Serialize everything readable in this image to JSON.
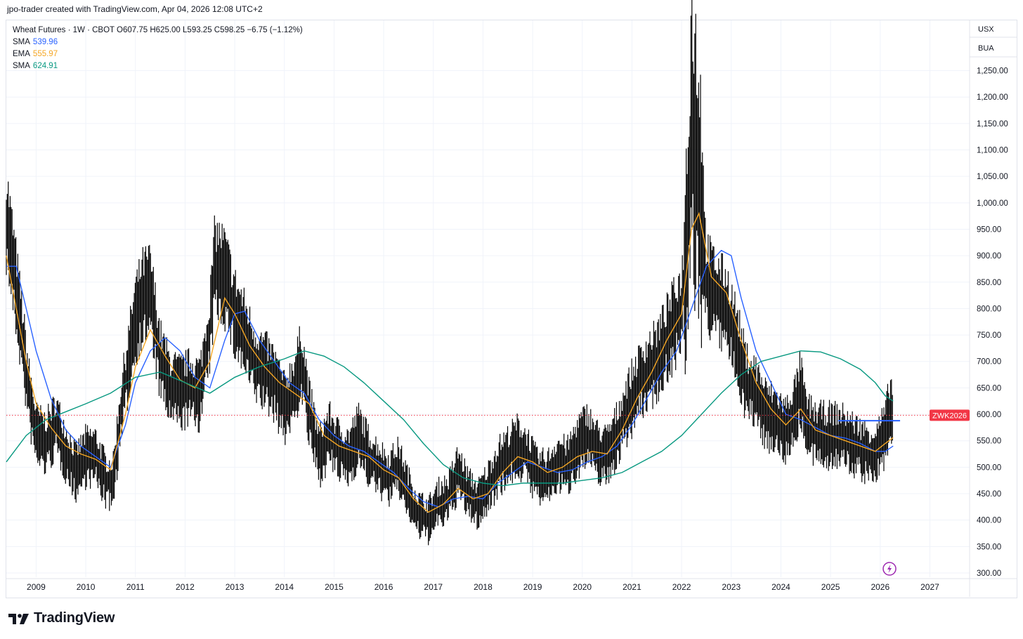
{
  "attribution": "jpo-trader created with TradingView.com, Apr 04, 2026 12:08 UTC+2",
  "legend": {
    "header": "Wheat Futures · 1W · CBOT  O607.75  H625.00  L593.25  C598.25  −6.75 (−1.12%)",
    "indicators": [
      {
        "name": "SMA",
        "value": "539.96",
        "color": "#2962ff"
      },
      {
        "name": "EMA",
        "value": "555.97",
        "color": "#f5a623"
      },
      {
        "name": "SMA",
        "value": "624.91",
        "color": "#089981"
      }
    ]
  },
  "units": [
    "USX",
    "BUA"
  ],
  "price_label": {
    "text": "ZWK2026",
    "value": 598.25,
    "color": "#f23645"
  },
  "brand": {
    "name": "TradingView",
    "logo_icon": "tradingview-logo-icon"
  },
  "chart_data": {
    "type": "line",
    "x_axis": {
      "ticks": [
        "2009",
        "2010",
        "2011",
        "2012",
        "2013",
        "2014",
        "2015",
        "2016",
        "2017",
        "2018",
        "2019",
        "2020",
        "2021",
        "2022",
        "2023",
        "2024",
        "2025",
        "2026",
        "2027"
      ],
      "range": [
        2008.4,
        2027.8
      ]
    },
    "y_axis": {
      "ticks": [
        "1,250.00",
        "1,200.00",
        "1,150.00",
        "1,100.00",
        "1,050.00",
        "1,000.00",
        "950.00",
        "900.00",
        "850.00",
        "800.00",
        "750.00",
        "700.00",
        "650.00",
        "600.00",
        "550.00",
        "500.00",
        "450.00",
        "400.00",
        "350.00",
        "300.00"
      ],
      "range": [
        292,
        1345
      ],
      "position": "right"
    },
    "grid": true,
    "price_envelope": [
      [
        2008.4,
        975
      ],
      [
        2008.55,
        870
      ],
      [
        2008.7,
        760
      ],
      [
        2008.85,
        640
      ],
      [
        2009.0,
        560
      ],
      [
        2009.2,
        545
      ],
      [
        2009.4,
        580
      ],
      [
        2009.6,
        530
      ],
      [
        2009.8,
        490
      ],
      [
        2010.0,
        520
      ],
      [
        2010.2,
        520
      ],
      [
        2010.4,
        475
      ],
      [
        2010.55,
        470
      ],
      [
        2010.7,
        600
      ],
      [
        2010.85,
        690
      ],
      [
        2011.0,
        780
      ],
      [
        2011.15,
        820
      ],
      [
        2011.3,
        830
      ],
      [
        2011.5,
        700
      ],
      [
        2011.7,
        650
      ],
      [
        2011.9,
        640
      ],
      [
        2012.1,
        650
      ],
      [
        2012.3,
        640
      ],
      [
        2012.5,
        760
      ],
      [
        2012.6,
        880
      ],
      [
        2012.8,
        860
      ],
      [
        2013.0,
        790
      ],
      [
        2013.2,
        750
      ],
      [
        2013.4,
        700
      ],
      [
        2013.6,
        680
      ],
      [
        2013.8,
        660
      ],
      [
        2014.0,
        610
      ],
      [
        2014.2,
        650
      ],
      [
        2014.35,
        700
      ],
      [
        2014.5,
        600
      ],
      [
        2014.7,
        520
      ],
      [
        2014.9,
        560
      ],
      [
        2015.1,
        530
      ],
      [
        2015.3,
        520
      ],
      [
        2015.5,
        560
      ],
      [
        2015.7,
        520
      ],
      [
        2015.9,
        500
      ],
      [
        2016.1,
        480
      ],
      [
        2016.3,
        500
      ],
      [
        2016.5,
        450
      ],
      [
        2016.7,
        410
      ],
      [
        2016.9,
        400
      ],
      [
        2017.1,
        430
      ],
      [
        2017.3,
        440
      ],
      [
        2017.5,
        490
      ],
      [
        2017.7,
        450
      ],
      [
        2017.9,
        430
      ],
      [
        2018.1,
        460
      ],
      [
        2018.3,
        500
      ],
      [
        2018.5,
        520
      ],
      [
        2018.7,
        540
      ],
      [
        2018.9,
        520
      ],
      [
        2019.1,
        480
      ],
      [
        2019.3,
        480
      ],
      [
        2019.5,
        510
      ],
      [
        2019.7,
        500
      ],
      [
        2019.9,
        540
      ],
      [
        2020.1,
        560
      ],
      [
        2020.3,
        530
      ],
      [
        2020.5,
        520
      ],
      [
        2020.7,
        560
      ],
      [
        2020.9,
        610
      ],
      [
        2021.1,
        650
      ],
      [
        2021.3,
        680
      ],
      [
        2021.5,
        700
      ],
      [
        2021.7,
        740
      ],
      [
        2021.9,
        780
      ],
      [
        2022.0,
        800
      ],
      [
        2022.1,
        900
      ],
      [
        2022.2,
        1150
      ],
      [
        2022.35,
        1050
      ],
      [
        2022.5,
        850
      ],
      [
        2022.7,
        820
      ],
      [
        2022.9,
        800
      ],
      [
        2023.1,
        740
      ],
      [
        2023.3,
        660
      ],
      [
        2023.5,
        640
      ],
      [
        2023.7,
        600
      ],
      [
        2023.9,
        590
      ],
      [
        2024.1,
        570
      ],
      [
        2024.3,
        610
      ],
      [
        2024.4,
        650
      ],
      [
        2024.5,
        580
      ],
      [
        2024.7,
        560
      ],
      [
        2024.9,
        560
      ],
      [
        2025.1,
        560
      ],
      [
        2025.3,
        555
      ],
      [
        2025.5,
        540
      ],
      [
        2025.7,
        530
      ],
      [
        2025.9,
        525
      ],
      [
        2026.1,
        560
      ],
      [
        2026.2,
        615
      ],
      [
        2026.26,
        598
      ]
    ],
    "series": [
      {
        "values": [
          [
            2008.4,
            880
          ],
          [
            2008.6,
            880
          ],
          [
            2008.8,
            800
          ],
          [
            2009.0,
            720
          ],
          [
            2009.3,
            630
          ],
          [
            2009.6,
            570
          ],
          [
            2009.9,
            540
          ],
          [
            2010.2,
            520
          ],
          [
            2010.5,
            500
          ],
          [
            2010.8,
            580
          ],
          [
            2011.0,
            660
          ],
          [
            2011.3,
            720
          ],
          [
            2011.6,
            745
          ],
          [
            2011.9,
            720
          ],
          [
            2012.2,
            670
          ],
          [
            2012.5,
            650
          ],
          [
            2012.8,
            740
          ],
          [
            2013.0,
            790
          ],
          [
            2013.2,
            795
          ],
          [
            2013.5,
            740
          ],
          [
            2013.8,
            700
          ],
          [
            2014.1,
            660
          ],
          [
            2014.4,
            640
          ],
          [
            2014.7,
            590
          ],
          [
            2015.0,
            560
          ],
          [
            2015.3,
            540
          ],
          [
            2015.6,
            530
          ],
          [
            2015.9,
            510
          ],
          [
            2016.2,
            490
          ],
          [
            2016.5,
            460
          ],
          [
            2016.8,
            435
          ],
          [
            2017.1,
            425
          ],
          [
            2017.4,
            440
          ],
          [
            2017.7,
            445
          ],
          [
            2018.0,
            440
          ],
          [
            2018.3,
            470
          ],
          [
            2018.6,
            490
          ],
          [
            2018.9,
            510
          ],
          [
            2019.2,
            500
          ],
          [
            2019.5,
            490
          ],
          [
            2019.8,
            495
          ],
          [
            2020.1,
            510
          ],
          [
            2020.4,
            520
          ],
          [
            2020.7,
            540
          ],
          [
            2021.0,
            580
          ],
          [
            2021.3,
            630
          ],
          [
            2021.6,
            680
          ],
          [
            2021.9,
            720
          ],
          [
            2022.2,
            800
          ],
          [
            2022.5,
            880
          ],
          [
            2022.8,
            910
          ],
          [
            2023.0,
            900
          ],
          [
            2023.2,
            820
          ],
          [
            2023.5,
            720
          ],
          [
            2023.8,
            660
          ],
          [
            2024.1,
            600
          ],
          [
            2024.4,
            590
          ],
          [
            2024.7,
            575
          ],
          [
            2025.0,
            560
          ],
          [
            2025.3,
            555
          ],
          [
            2025.6,
            545
          ],
          [
            2025.9,
            530
          ],
          [
            2026.1,
            530
          ],
          [
            2026.26,
            540
          ]
        ]
      },
      {
        "values": [
          [
            2008.4,
            900
          ],
          [
            2008.6,
            800
          ],
          [
            2008.8,
            700
          ],
          [
            2009.0,
            620
          ],
          [
            2009.3,
            575
          ],
          [
            2009.6,
            540
          ],
          [
            2009.9,
            525
          ],
          [
            2010.2,
            515
          ],
          [
            2010.5,
            495
          ],
          [
            2010.8,
            600
          ],
          [
            2011.0,
            690
          ],
          [
            2011.3,
            760
          ],
          [
            2011.6,
            710
          ],
          [
            2011.9,
            665
          ],
          [
            2012.2,
            650
          ],
          [
            2012.5,
            700
          ],
          [
            2012.8,
            820
          ],
          [
            2013.0,
            790
          ],
          [
            2013.3,
            730
          ],
          [
            2013.6,
            690
          ],
          [
            2013.9,
            660
          ],
          [
            2014.2,
            640
          ],
          [
            2014.5,
            620
          ],
          [
            2014.8,
            560
          ],
          [
            2015.1,
            540
          ],
          [
            2015.4,
            530
          ],
          [
            2015.7,
            520
          ],
          [
            2016.0,
            495
          ],
          [
            2016.3,
            480
          ],
          [
            2016.6,
            440
          ],
          [
            2016.9,
            415
          ],
          [
            2017.2,
            430
          ],
          [
            2017.5,
            460
          ],
          [
            2017.8,
            440
          ],
          [
            2018.1,
            450
          ],
          [
            2018.4,
            490
          ],
          [
            2018.7,
            520
          ],
          [
            2019.0,
            510
          ],
          [
            2019.3,
            490
          ],
          [
            2019.6,
            500
          ],
          [
            2019.9,
            520
          ],
          [
            2020.2,
            530
          ],
          [
            2020.5,
            525
          ],
          [
            2020.8,
            570
          ],
          [
            2021.1,
            630
          ],
          [
            2021.4,
            680
          ],
          [
            2021.7,
            740
          ],
          [
            2022.0,
            790
          ],
          [
            2022.2,
            950
          ],
          [
            2022.35,
            980
          ],
          [
            2022.6,
            860
          ],
          [
            2022.9,
            830
          ],
          [
            2023.2,
            740
          ],
          [
            2023.5,
            660
          ],
          [
            2023.8,
            610
          ],
          [
            2024.1,
            580
          ],
          [
            2024.4,
            610
          ],
          [
            2024.7,
            570
          ],
          [
            2025.0,
            560
          ],
          [
            2025.3,
            550
          ],
          [
            2025.6,
            540
          ],
          [
            2025.9,
            530
          ],
          [
            2026.1,
            545
          ],
          [
            2026.26,
            556
          ]
        ]
      },
      {
        "values": [
          [
            2008.4,
            510
          ],
          [
            2008.8,
            560
          ],
          [
            2009.2,
            590
          ],
          [
            2009.6,
            605
          ],
          [
            2010.0,
            620
          ],
          [
            2010.5,
            640
          ],
          [
            2011.0,
            670
          ],
          [
            2011.5,
            680
          ],
          [
            2012.0,
            660
          ],
          [
            2012.5,
            640
          ],
          [
            2013.0,
            670
          ],
          [
            2013.5,
            690
          ],
          [
            2014.0,
            705
          ],
          [
            2014.4,
            720
          ],
          [
            2014.8,
            710
          ],
          [
            2015.2,
            690
          ],
          [
            2015.6,
            660
          ],
          [
            2016.0,
            625
          ],
          [
            2016.4,
            590
          ],
          [
            2016.8,
            545
          ],
          [
            2017.2,
            505
          ],
          [
            2017.6,
            480
          ],
          [
            2018.0,
            470
          ],
          [
            2018.4,
            465
          ],
          [
            2018.8,
            470
          ],
          [
            2019.2,
            470
          ],
          [
            2019.6,
            470
          ],
          [
            2020.0,
            475
          ],
          [
            2020.4,
            480
          ],
          [
            2020.8,
            490
          ],
          [
            2021.2,
            510
          ],
          [
            2021.6,
            530
          ],
          [
            2022.0,
            560
          ],
          [
            2022.4,
            600
          ],
          [
            2022.8,
            640
          ],
          [
            2023.2,
            675
          ],
          [
            2023.6,
            700
          ],
          [
            2024.0,
            710
          ],
          [
            2024.4,
            720
          ],
          [
            2024.8,
            718
          ],
          [
            2025.2,
            705
          ],
          [
            2025.6,
            685
          ],
          [
            2025.9,
            660
          ],
          [
            2026.1,
            635
          ],
          [
            2026.26,
            625
          ]
        ]
      }
    ],
    "hline": {
      "value": 588,
      "x_start": 2025.15,
      "x_end": 2026.4,
      "color": "#2962ff"
    }
  }
}
